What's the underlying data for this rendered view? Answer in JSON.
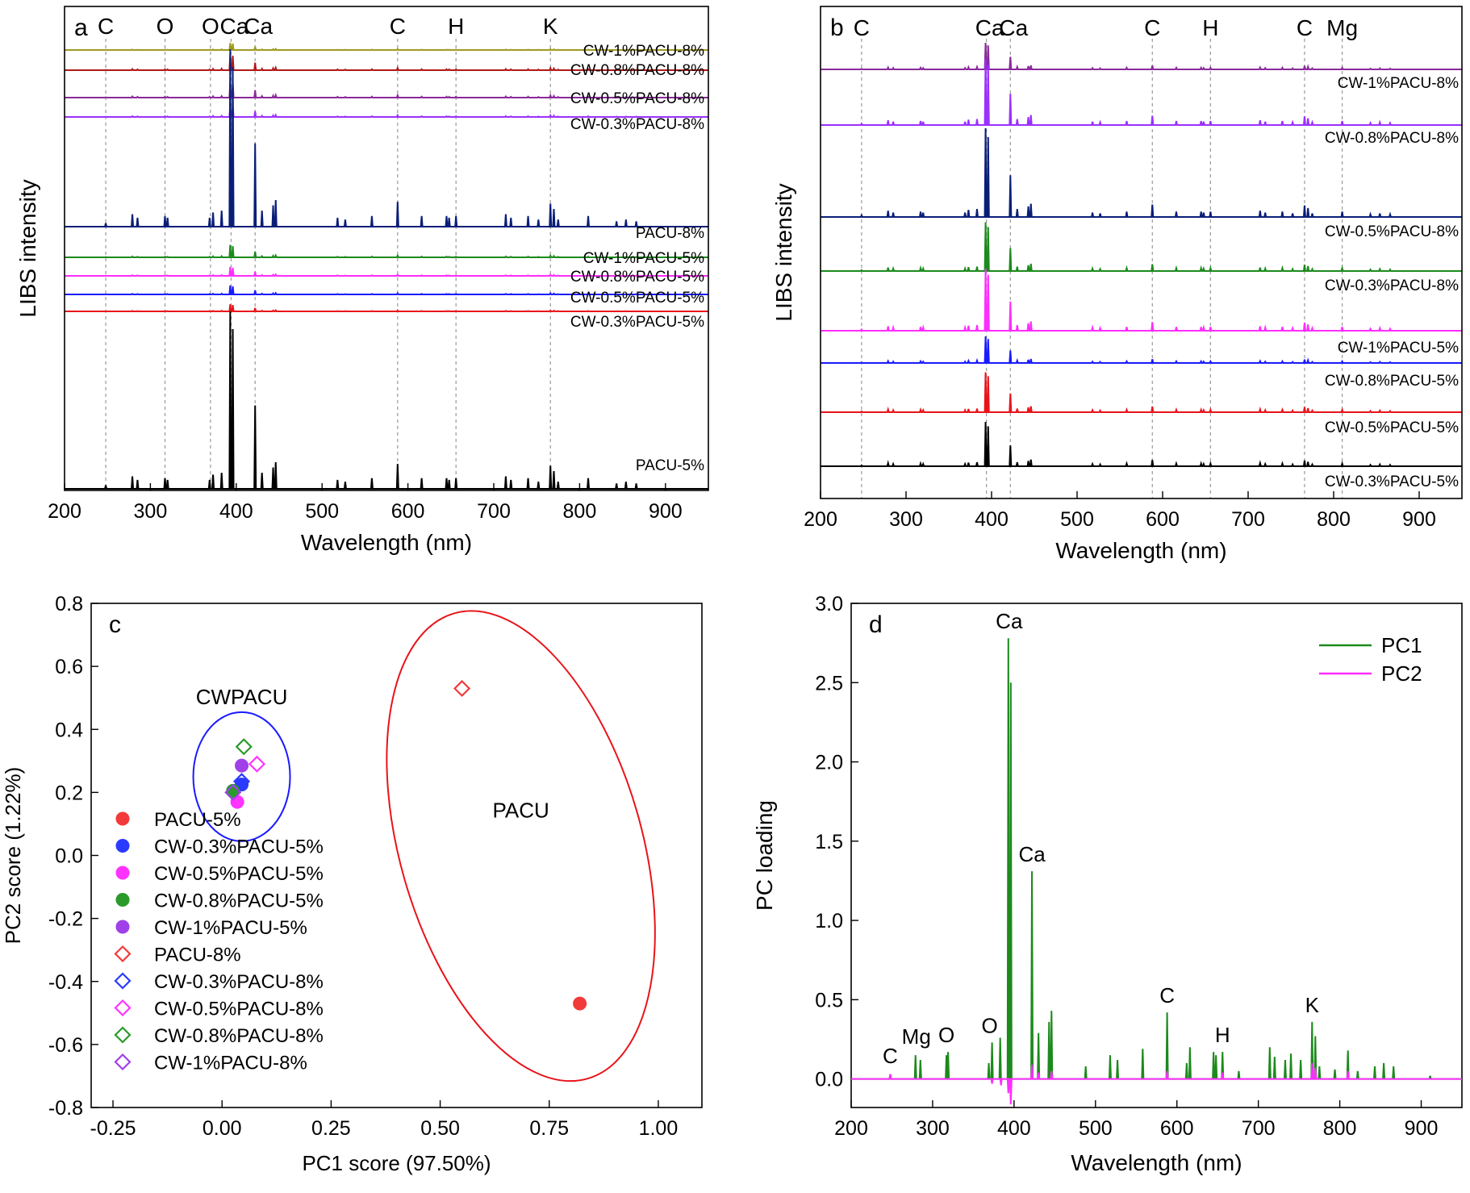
{
  "chart_data": [
    {
      "panel": "a",
      "type": "line",
      "xlabel": "Wavelength (nm)",
      "ylabel": "LIBS intensity",
      "xlim": [
        200,
        950
      ],
      "xticks": [
        "200",
        "300",
        "400",
        "500",
        "600",
        "700",
        "800",
        "900"
      ],
      "element_markers": [
        {
          "label": "C",
          "x": 248
        },
        {
          "label": "O",
          "x": 317
        },
        {
          "label": "O",
          "x": 370
        },
        {
          "label": "Ca",
          "x": 394
        },
        {
          "label": "Ca",
          "x": 422
        },
        {
          "label": "C",
          "x": 588
        },
        {
          "label": "H",
          "x": 656
        },
        {
          "label": "K",
          "x": 766
        }
      ],
      "series": [
        {
          "name": "CW-1%PACU-8%",
          "color": "#a09a20",
          "scale": 0.04
        },
        {
          "name": "CW-0.8%PACU-8%",
          "color": "#b01818",
          "scale": 0.09
        },
        {
          "name": "CW-0.5%PACU-8%",
          "color": "#8a2a9a",
          "scale": 0.09
        },
        {
          "name": "CW-0.3%PACU-8%",
          "color": "#9b30ff",
          "scale": 0.07
        },
        {
          "name": "PACU-8%",
          "color": "#0a1e78",
          "scale": 1.0
        },
        {
          "name": "CW-1%PACU-5%",
          "color": "#1c8a1c",
          "scale": 0.07
        },
        {
          "name": "CW-0.8%PACU-5%",
          "color": "#ff2dff",
          "scale": 0.05
        },
        {
          "name": "CW-0.5%PACU-5%",
          "color": "#1a1aff",
          "scale": 0.05
        },
        {
          "name": "CW-0.3%PACU-5%",
          "color": "#e8141a",
          "scale": 0.04
        },
        {
          "name": "PACU-5%",
          "color": "#000000",
          "scale": 1.0
        }
      ]
    },
    {
      "panel": "b",
      "type": "line",
      "xlabel": "Wavelength (nm)",
      "ylabel": "LIBS intensity",
      "xlim": [
        200,
        950
      ],
      "xticks": [
        "200",
        "300",
        "400",
        "500",
        "600",
        "700",
        "800",
        "900"
      ],
      "element_markers": [
        {
          "label": "C",
          "x": 248
        },
        {
          "label": "Ca",
          "x": 394
        },
        {
          "label": "Ca",
          "x": 422
        },
        {
          "label": "C",
          "x": 588
        },
        {
          "label": "H",
          "x": 656
        },
        {
          "label": "C",
          "x": 766
        },
        {
          "label": "Mg",
          "x": 810
        }
      ],
      "series": [
        {
          "name": "CW-1%PACU-8%",
          "color": "#8a2a9a",
          "scale": 0.3
        },
        {
          "name": "CW-0.8%PACU-8%",
          "color": "#9b30ff",
          "scale": 0.75
        },
        {
          "name": "CW-0.5%PACU-8%",
          "color": "#0a1e78",
          "scale": 1.0
        },
        {
          "name": "CW-0.3%PACU-8%",
          "color": "#1c8a1c",
          "scale": 0.55
        },
        {
          "name": "CW-1%PACU-5%",
          "color": "#ff2dff",
          "scale": 0.7
        },
        {
          "name": "CW-0.8%PACU-5%",
          "color": "#1a1aff",
          "scale": 0.3
        },
        {
          "name": "CW-0.5%PACU-5%",
          "color": "#e8141a",
          "scale": 0.45
        },
        {
          "name": "CW-0.3%PACU-5%",
          "color": "#000000",
          "scale": 0.5
        }
      ]
    },
    {
      "panel": "c",
      "type": "scatter",
      "xlabel": "PC1 score (97.50%)",
      "ylabel": "PC2 score (1.22%)",
      "xlim": [
        -0.3,
        1.1
      ],
      "ylim": [
        -0.8,
        0.8
      ],
      "xticks": [
        "-0.25",
        "0.00",
        "0.25",
        "0.50",
        "0.75",
        "1.00"
      ],
      "yticks": [
        "0.8",
        "0.6",
        "0.4",
        "0.2",
        "0.0",
        "-0.2",
        "-0.4",
        "-0.6",
        "-0.8"
      ],
      "groups": [
        {
          "label": "CWPACU",
          "color": "#1a1aff"
        },
        {
          "label": "PACU",
          "color": "#e8141a"
        }
      ],
      "series": [
        {
          "name": "PACU-5%",
          "marker": "circle",
          "color": "#f23a3a",
          "x": 0.82,
          "y": -0.47
        },
        {
          "name": "CW-0.3%PACU-5%",
          "marker": "circle",
          "color": "#2a3aff",
          "x": 0.045,
          "y": 0.225
        },
        {
          "name": "CW-0.5%PACU-5%",
          "marker": "circle",
          "color": "#ff33ff",
          "x": 0.035,
          "y": 0.17
        },
        {
          "name": "CW-0.8%PACU-5%",
          "marker": "circle",
          "color": "#2a9a2a",
          "x": 0.025,
          "y": 0.205
        },
        {
          "name": "CW-1%PACU-5%",
          "marker": "circle",
          "color": "#a040e8",
          "x": 0.045,
          "y": 0.285
        },
        {
          "name": "PACU-8%",
          "marker": "diamond",
          "color": "#f23a3a",
          "x": 0.55,
          "y": 0.53
        },
        {
          "name": "CW-0.3%PACU-8%",
          "marker": "diamond",
          "color": "#2a3aff",
          "x": 0.045,
          "y": 0.235
        },
        {
          "name": "CW-0.5%PACU-8%",
          "marker": "diamond",
          "color": "#ff33ff",
          "x": 0.08,
          "y": 0.29
        },
        {
          "name": "CW-0.8%PACU-8%",
          "marker": "diamond",
          "color": "#2a9a2a",
          "x": 0.05,
          "y": 0.345
        },
        {
          "name": "CW-1%PACU-8%",
          "marker": "diamond",
          "color": "#a040e8",
          "x": 0.025,
          "y": 0.2
        }
      ]
    },
    {
      "panel": "d",
      "type": "line",
      "xlabel": "Wavelength (nm)",
      "ylabel": "PC loading",
      "xlim": [
        200,
        950
      ],
      "ylim": [
        -0.18,
        3.0
      ],
      "xticks": [
        "200",
        "300",
        "400",
        "500",
        "600",
        "700",
        "800",
        "900"
      ],
      "yticks": [
        "3.0",
        "2.5",
        "2.0",
        "1.5",
        "1.0",
        "0.5",
        "0.0"
      ],
      "legend_position": "top-right",
      "peak_annotations": [
        {
          "label": "C",
          "x": 248,
          "y": 0.04
        },
        {
          "label": "Mg",
          "x": 280,
          "y": 0.16
        },
        {
          "label": "O",
          "x": 317,
          "y": 0.17
        },
        {
          "label": "O",
          "x": 370,
          "y": 0.23
        },
        {
          "label": "Ca",
          "x": 394,
          "y": 2.78
        },
        {
          "label": "Ca",
          "x": 422,
          "y": 1.31
        },
        {
          "label": "C",
          "x": 588,
          "y": 0.42
        },
        {
          "label": "H",
          "x": 656,
          "y": 0.17
        },
        {
          "label": "K",
          "x": 766,
          "y": 0.36
        }
      ],
      "series": [
        {
          "name": "PC1",
          "color": "#1c8a1c",
          "peaks": [
            [
              248,
              0.03
            ],
            [
              279,
              0.15
            ],
            [
              285,
              0.12
            ],
            [
              317,
              0.15
            ],
            [
              319,
              0.17
            ],
            [
              369,
              0.1
            ],
            [
              373,
              0.23
            ],
            [
              383,
              0.26
            ],
            [
              393,
              2.78
            ],
            [
              396,
              2.5
            ],
            [
              422,
              1.31
            ],
            [
              430,
              0.29
            ],
            [
              443,
              0.36
            ],
            [
              446,
              0.43
            ],
            [
              488,
              0.08
            ],
            [
              518,
              0.15
            ],
            [
              527,
              0.12
            ],
            [
              558,
              0.19
            ],
            [
              588,
              0.42
            ],
            [
              612,
              0.1
            ],
            [
              616,
              0.2
            ],
            [
              645,
              0.17
            ],
            [
              648,
              0.15
            ],
            [
              656,
              0.17
            ],
            [
              676,
              0.05
            ],
            [
              714,
              0.2
            ],
            [
              720,
              0.14
            ],
            [
              733,
              0.12
            ],
            [
              740,
              0.16
            ],
            [
              752,
              0.12
            ],
            [
              766,
              0.36
            ],
            [
              770,
              0.27
            ],
            [
              775,
              0.08
            ],
            [
              794,
              0.06
            ],
            [
              810,
              0.18
            ],
            [
              822,
              0.05
            ],
            [
              843,
              0.08
            ],
            [
              854,
              0.1
            ],
            [
              866,
              0.08
            ],
            [
              911,
              0.02
            ]
          ]
        },
        {
          "name": "PC2",
          "color": "#ff2dff",
          "peaks": [
            [
              248,
              0.03
            ],
            [
              373,
              -0.03
            ],
            [
              384,
              -0.04
            ],
            [
              393,
              -0.09
            ],
            [
              396,
              -0.16
            ],
            [
              422,
              0.09
            ],
            [
              430,
              0.04
            ],
            [
              446,
              0.05
            ],
            [
              588,
              0.05
            ],
            [
              656,
              0.04
            ],
            [
              766,
              0.1
            ],
            [
              770,
              0.07
            ],
            [
              810,
              0.05
            ]
          ]
        }
      ]
    }
  ]
}
